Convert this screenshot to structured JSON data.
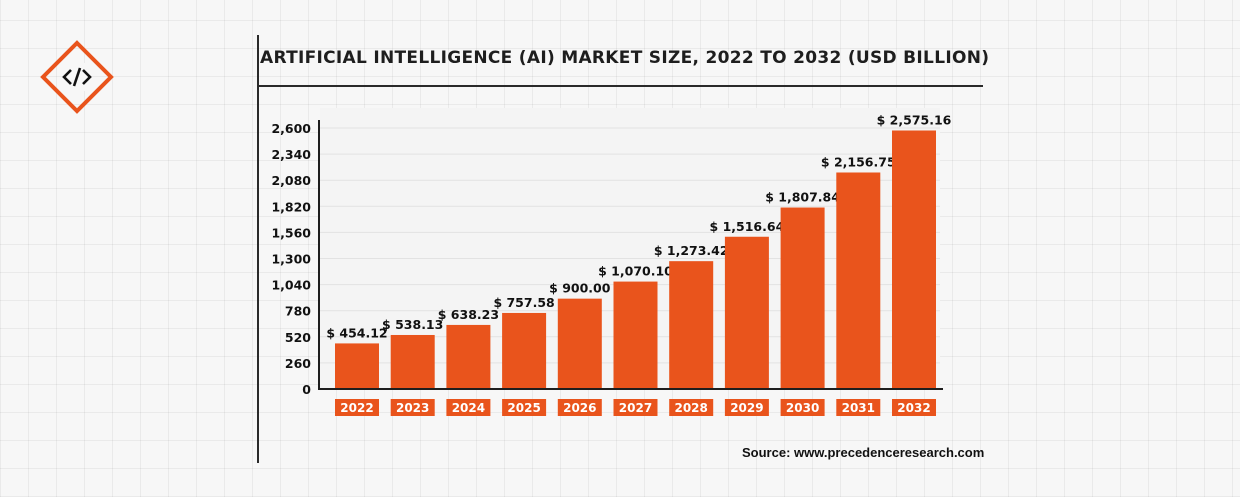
{
  "colors": {
    "bar": "#e9541c",
    "axis": "#1e1e1e",
    "text": "#111111"
  },
  "logo": {
    "icon": "code-brackets-icon",
    "glyph": "</>"
  },
  "source": "Source: www.precedenceresearch.com",
  "chart_data": {
    "type": "bar",
    "title": "ARTIFICIAL INTELLIGENCE (AI) MARKET SIZE, 2022 TO 2032 (USD BILLION)",
    "categories": [
      "2022",
      "2023",
      "2024",
      "2025",
      "2026",
      "2027",
      "2028",
      "2029",
      "2030",
      "2031",
      "2032"
    ],
    "values": [
      454.12,
      538.13,
      638.23,
      757.58,
      900.0,
      1070.1,
      1273.42,
      1516.64,
      1807.84,
      2156.75,
      2575.16
    ],
    "value_labels": [
      "$ 454.12",
      "$ 538.13",
      "$ 638.23",
      "$ 757.58",
      "$ 900.00",
      "$ 1,070.10",
      "$ 1,273.42",
      "$ 1,516.64",
      "$ 1,807.84",
      "$ 2,156.75",
      "$ 2,575.16"
    ],
    "yticks": [
      0,
      260,
      520,
      780,
      1040,
      1300,
      1560,
      1820,
      2080,
      2340,
      2600
    ],
    "ytick_labels": [
      "0",
      "260",
      "520",
      "780",
      "1,040",
      "1,300",
      "1,560",
      "1,820",
      "2,080",
      "2,340",
      "2,600"
    ],
    "ylim": [
      0,
      2600
    ],
    "xlabel": "",
    "ylabel": "",
    "grid": true,
    "legend": "none"
  }
}
